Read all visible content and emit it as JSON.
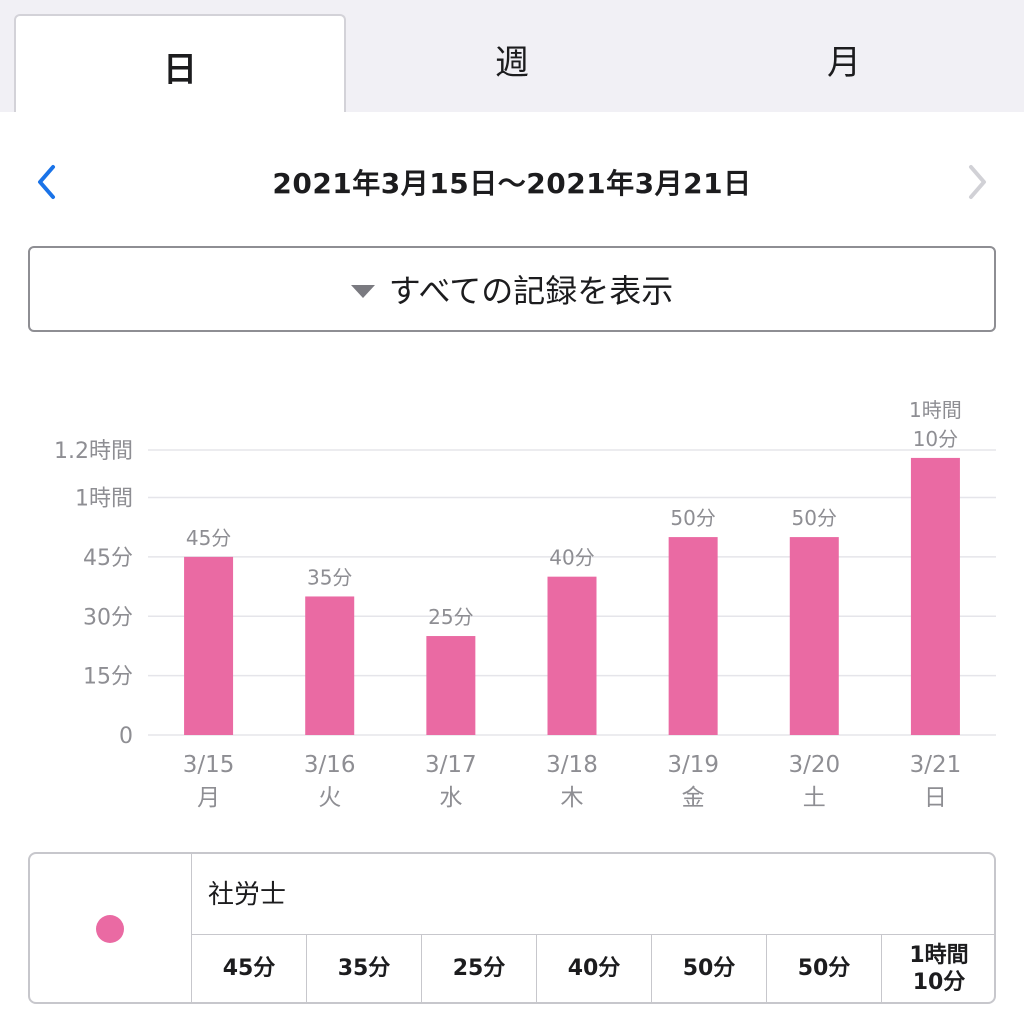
{
  "tabs": [
    {
      "label": "日",
      "active": true
    },
    {
      "label": "週",
      "active": false
    },
    {
      "label": "月",
      "active": false
    }
  ],
  "date_nav": {
    "range": "2021年3月15日〜2021年3月21日",
    "prev_icon": "chevron-left-icon",
    "next_icon": "chevron-right-icon",
    "prev_color": "#1a73e8",
    "next_color": "#d1d1d6"
  },
  "filter": {
    "label": "すべての記録を表示"
  },
  "colors": {
    "bar": "#ea6aa3",
    "grid": "#e5e5ea",
    "axis_text": "#8e8e93"
  },
  "chart_data": {
    "type": "bar",
    "categories": [
      "3/15",
      "3/16",
      "3/17",
      "3/18",
      "3/19",
      "3/20",
      "3/21"
    ],
    "weekdays": [
      "月",
      "火",
      "水",
      "木",
      "金",
      "土",
      "日"
    ],
    "series": [
      {
        "name": "社労士",
        "unit": "minutes",
        "values": [
          45,
          35,
          25,
          40,
          50,
          50,
          70
        ],
        "value_labels": [
          "45分",
          "35分",
          "25分",
          "40分",
          "50分",
          "50分",
          "1時間\n10分"
        ]
      }
    ],
    "y_ticks": [
      {
        "value": 0,
        "label": "0"
      },
      {
        "value": 15,
        "label": "15分"
      },
      {
        "value": 30,
        "label": "30分"
      },
      {
        "value": 45,
        "label": "45分"
      },
      {
        "value": 60,
        "label": "1時間"
      },
      {
        "value": 72,
        "label": "1.2時間"
      }
    ],
    "ylim": [
      0,
      72
    ],
    "grid": true
  },
  "summary": {
    "series_name": "社労士",
    "values": [
      "45分",
      "35分",
      "25分",
      "40分",
      "50分",
      "50分",
      "1時間\n10分"
    ]
  }
}
